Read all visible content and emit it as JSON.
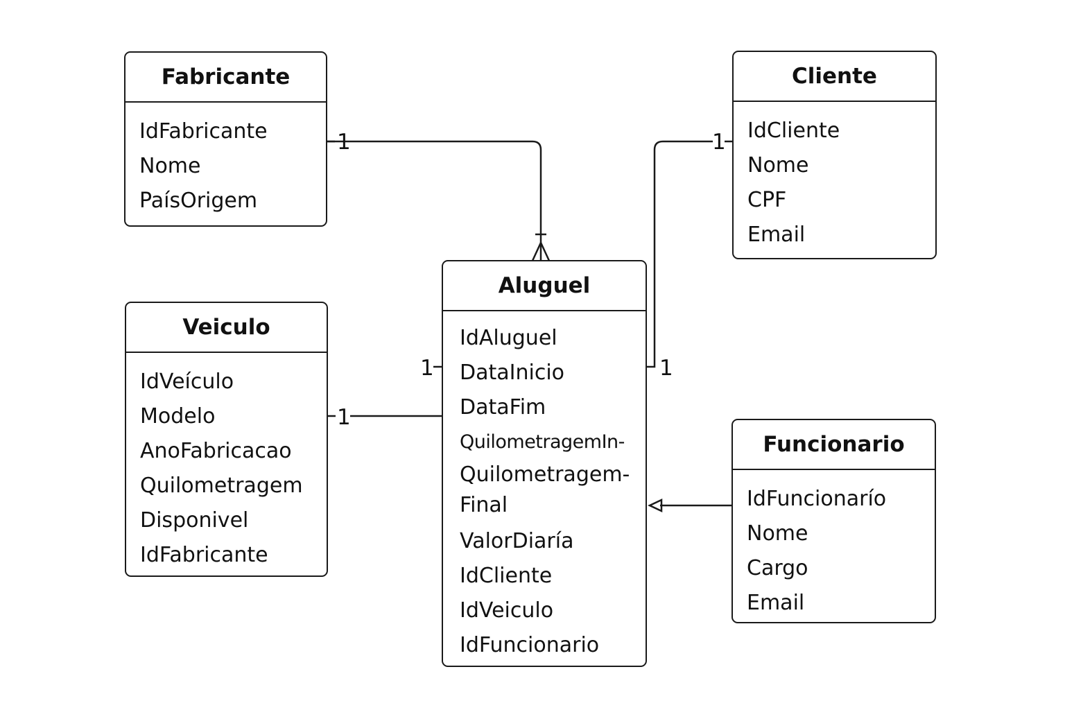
{
  "entities": {
    "fabricante": {
      "title": "Fabricante",
      "attributes": [
        "IdFabricante",
        "Nome",
        "PaísOrigem"
      ]
    },
    "cliente": {
      "title": "Cliente",
      "attributes": [
        "IdCliente",
        "Nome",
        "CPF",
        "Email"
      ]
    },
    "veiculo": {
      "title": "Veiculo",
      "attributes": [
        "IdVeículo",
        "Modelo",
        "AnoFabricacao",
        "Quilometragem",
        "Disponivel",
        "IdFabricante"
      ]
    },
    "aluguel": {
      "title": "Aluguel",
      "attributes": [
        "IdAluguel",
        "DataInicio",
        "DataFim",
        "QuilometragemIn-",
        "Quilometragem-",
        "Final",
        "ValorDiaría",
        "IdCliente",
        "IdVeiculo",
        "IdFuncionario"
      ]
    },
    "funcionario": {
      "title": "Funcionario",
      "attributes": [
        "IdFuncionarío",
        "Nome",
        "Cargo",
        "Email"
      ]
    }
  },
  "relationships": {
    "fabricante_aluguel": {
      "from_cardinality": "1"
    },
    "cliente_aluguel": {
      "from_cardinality": "1",
      "to_cardinality": "1"
    },
    "veiculo_aluguel": {
      "from_cardinality": "1",
      "to_cardinality": "1"
    }
  }
}
